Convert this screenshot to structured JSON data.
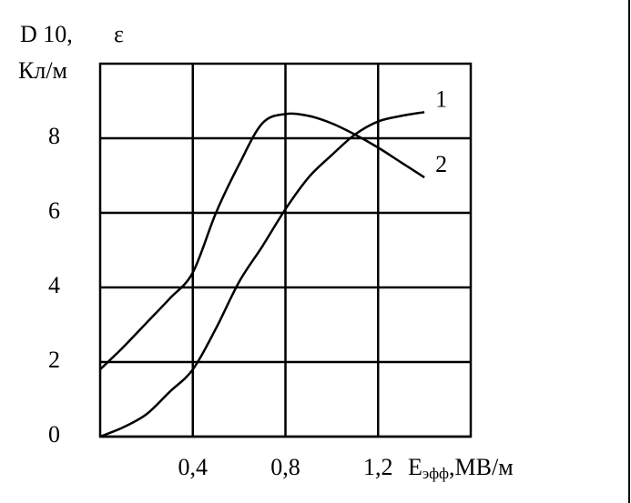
{
  "chart_data": {
    "type": "line",
    "ylabel": "D 10,",
    "ylabel_symbol": "ε",
    "yunit": "Кл/м",
    "xlabel": "E",
    "xlabel_sub": "эфф",
    "xunit": ",МВ/м",
    "x": [
      0,
      0.1,
      0.2,
      0.3,
      0.4,
      0.5,
      0.6,
      0.7,
      0.8,
      0.9,
      1.0,
      1.1,
      1.2,
      1.3,
      1.4
    ],
    "series": [
      {
        "name": "1",
        "color": "#000000",
        "values": [
          0,
          0.25,
          0.6,
          1.2,
          1.8,
          2.9,
          4.15,
          5.1,
          6.1,
          6.95,
          7.55,
          8.1,
          8.45,
          8.6,
          8.7
        ]
      },
      {
        "name": "2",
        "color": "#000000",
        "values": [
          1.8,
          2.4,
          3.05,
          3.7,
          4.4,
          6.0,
          7.3,
          8.4,
          8.65,
          8.6,
          8.4,
          8.1,
          7.75,
          7.35,
          6.95
        ]
      }
    ],
    "xlim": [
      0,
      1.6
    ],
    "ylim": [
      0,
      10
    ],
    "xticks": [
      {
        "value": 0.4,
        "label": "0,4"
      },
      {
        "value": 0.8,
        "label": "0,8"
      },
      {
        "value": 1.2,
        "label": "1,2"
      }
    ],
    "yticks": [
      0,
      2,
      4,
      6,
      8
    ],
    "grid": true
  }
}
